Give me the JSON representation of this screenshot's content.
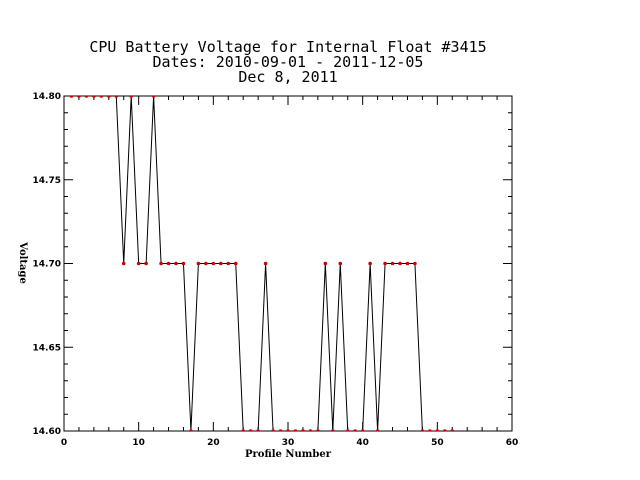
{
  "chart_data": {
    "type": "line",
    "title_lines": [
      "CPU Battery Voltage for Internal Float #3415",
      "Dates:  2010-09-01 -  2011-12-05",
      "Dec  8, 2011"
    ],
    "xlabel": "Profile Number",
    "ylabel": "Voltage",
    "xlim": [
      0,
      60
    ],
    "ylim": [
      14.6,
      14.8
    ],
    "x_ticks": [
      "0",
      "10",
      "20",
      "30",
      "40",
      "50",
      "60"
    ],
    "y_ticks": [
      "14.60",
      "14.65",
      "14.70",
      "14.75",
      "14.80"
    ],
    "grid": false,
    "line_color": "#000000",
    "marker_color": "#cc0000",
    "series": [
      {
        "x": [
          1,
          2,
          3,
          4,
          5,
          6,
          7,
          8,
          9,
          10,
          11,
          12,
          13,
          14,
          15,
          16,
          17,
          18,
          19,
          20,
          21,
          22,
          23,
          24,
          25,
          26,
          27,
          28,
          29,
          30,
          31,
          32,
          33,
          34,
          35,
          36,
          37,
          38,
          39,
          40,
          41,
          42,
          43,
          44,
          45,
          46,
          47,
          48,
          49,
          50,
          51,
          52
        ],
        "values": [
          14.8,
          14.8,
          14.8,
          14.8,
          14.8,
          14.8,
          14.8,
          14.7,
          14.8,
          14.7,
          14.7,
          14.8,
          14.7,
          14.7,
          14.7,
          14.7,
          14.6,
          14.7,
          14.7,
          14.7,
          14.7,
          14.7,
          14.7,
          14.6,
          14.6,
          14.6,
          14.7,
          14.6,
          14.6,
          14.6,
          14.6,
          14.6,
          14.6,
          14.6,
          14.7,
          14.6,
          14.7,
          14.6,
          14.6,
          14.6,
          14.7,
          14.6,
          14.7,
          14.7,
          14.7,
          14.7,
          14.7,
          14.6,
          14.6,
          14.6,
          14.6,
          14.6
        ]
      }
    ]
  }
}
